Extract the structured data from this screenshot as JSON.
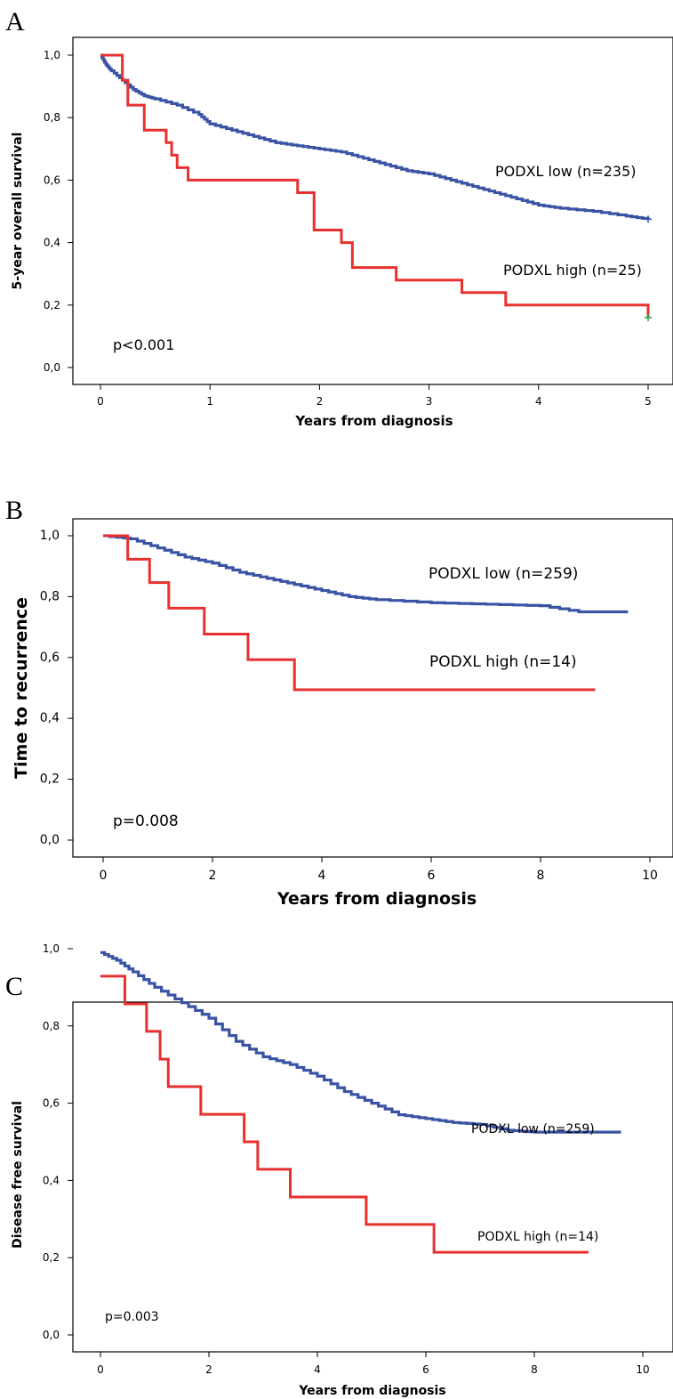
{
  "chart_data": [
    {
      "type": "line",
      "panel": "A",
      "xlabel": "Years from diagnosis",
      "ylabel": "5-year overall survival",
      "xlim": [
        0,
        5
      ],
      "ylim": [
        0,
        1
      ],
      "xticks": [
        "0",
        "1",
        "2",
        "3",
        "4",
        "5"
      ],
      "yticks": [
        "0,0",
        "0,2",
        "0,4",
        "0,6",
        "0,8",
        "1,0"
      ],
      "annotation": "p<0.001",
      "series": [
        {
          "name": "PODXL low (n=235)",
          "color": "#3a53a4",
          "x": [
            0,
            0.05,
            0.1,
            0.2,
            0.3,
            0.4,
            0.5,
            0.7,
            0.9,
            1.0,
            1.2,
            1.4,
            1.6,
            1.8,
            2.0,
            2.2,
            2.4,
            2.6,
            2.8,
            3.0,
            3.2,
            3.4,
            3.6,
            3.8,
            4.0,
            4.2,
            4.5,
            4.8,
            5.0
          ],
          "y": [
            1.0,
            0.97,
            0.95,
            0.92,
            0.89,
            0.87,
            0.86,
            0.84,
            0.81,
            0.78,
            0.76,
            0.74,
            0.72,
            0.71,
            0.7,
            0.69,
            0.67,
            0.65,
            0.63,
            0.62,
            0.6,
            0.58,
            0.56,
            0.54,
            0.52,
            0.51,
            0.5,
            0.485,
            0.475
          ]
        },
        {
          "name": "PODXL high (n=25)",
          "color": "#e8312f",
          "step": true,
          "x": [
            0,
            0.2,
            0.25,
            0.4,
            0.6,
            0.65,
            0.7,
            0.8,
            1.8,
            1.95,
            2.2,
            2.3,
            2.7,
            3.3,
            3.7,
            5.0
          ],
          "y": [
            1.0,
            0.92,
            0.84,
            0.76,
            0.72,
            0.68,
            0.64,
            0.6,
            0.56,
            0.44,
            0.4,
            0.32,
            0.28,
            0.24,
            0.2,
            0.16
          ]
        }
      ]
    },
    {
      "type": "line",
      "panel": "B",
      "xlabel": "Years from diagnosis",
      "ylabel": "Time to recurrence",
      "xlim": [
        0,
        10
      ],
      "ylim": [
        0,
        1
      ],
      "xticks": [
        "0",
        "2",
        "4",
        "6",
        "8",
        "10"
      ],
      "yticks": [
        "0,0",
        "0,2",
        "0,4",
        "0,6",
        "0,8",
        "1,0"
      ],
      "annotation": "p=0.008",
      "series": [
        {
          "name": "PODXL low (n=259)",
          "color": "#3a53a4",
          "x": [
            0,
            0.5,
            1.0,
            1.5,
            2.0,
            2.5,
            3.0,
            3.5,
            4.0,
            4.5,
            5.0,
            6.0,
            7.0,
            8.0,
            8.7,
            9.6
          ],
          "y": [
            1.0,
            0.99,
            0.96,
            0.93,
            0.91,
            0.88,
            0.86,
            0.84,
            0.82,
            0.8,
            0.79,
            0.78,
            0.775,
            0.77,
            0.75,
            0.75
          ]
        },
        {
          "name": "PODXL high (n=14)",
          "color": "#e8312f",
          "step": true,
          "x": [
            0,
            0.45,
            0.85,
            1.2,
            1.85,
            2.65,
            3.5,
            9.0
          ],
          "y": [
            1.0,
            0.923,
            0.846,
            0.762,
            0.677,
            0.593,
            0.494,
            0.494
          ]
        }
      ]
    },
    {
      "type": "line",
      "panel": "C",
      "xlabel": "Years from diagnosis",
      "ylabel": "Disease free survival",
      "xlim": [
        0,
        10
      ],
      "ylim": [
        0,
        1
      ],
      "xticks": [
        "0",
        "2",
        "4",
        "6",
        "8",
        "10"
      ],
      "yticks": [
        "0,0",
        "0,2",
        "0,4",
        "0,6",
        "0,8",
        "1,0"
      ],
      "annotation": "p=0.003",
      "series": [
        {
          "name": "PODXL low (n=259)",
          "color": "#3a53a4",
          "x": [
            0,
            0.3,
            0.6,
            1.0,
            1.5,
            2.0,
            2.5,
            3.0,
            3.5,
            4.0,
            4.5,
            5.0,
            5.5,
            6.0,
            6.5,
            7.0,
            7.5,
            8.0,
            9.6
          ],
          "y": [
            0.99,
            0.97,
            0.94,
            0.9,
            0.86,
            0.82,
            0.76,
            0.72,
            0.7,
            0.67,
            0.63,
            0.6,
            0.57,
            0.56,
            0.55,
            0.545,
            0.53,
            0.525,
            0.525
          ]
        },
        {
          "name": "PODXL high (n=14)",
          "color": "#e8312f",
          "step": true,
          "x": [
            0,
            0.45,
            0.85,
            1.1,
            1.25,
            1.85,
            2.65,
            2.9,
            3.5,
            4.9,
            6.15,
            9.0
          ],
          "y": [
            0.929,
            0.857,
            0.786,
            0.714,
            0.643,
            0.571,
            0.5,
            0.429,
            0.357,
            0.286,
            0.214,
            0.214
          ]
        }
      ]
    }
  ],
  "panels": [
    {
      "letter": "A",
      "annotation": "p<0.001",
      "legend_low": "PODXL low (n=235)",
      "legend_high": "PODXL high (n=25)"
    },
    {
      "letter": "B",
      "annotation": "p=0.008",
      "legend_low": "PODXL low (n=259)",
      "legend_high": "PODXL high (n=14)"
    },
    {
      "letter": "C",
      "annotation": "p=0.003",
      "legend_low": "PODXL low (n=259)",
      "legend_high": "PODXL high (n=14)"
    }
  ]
}
